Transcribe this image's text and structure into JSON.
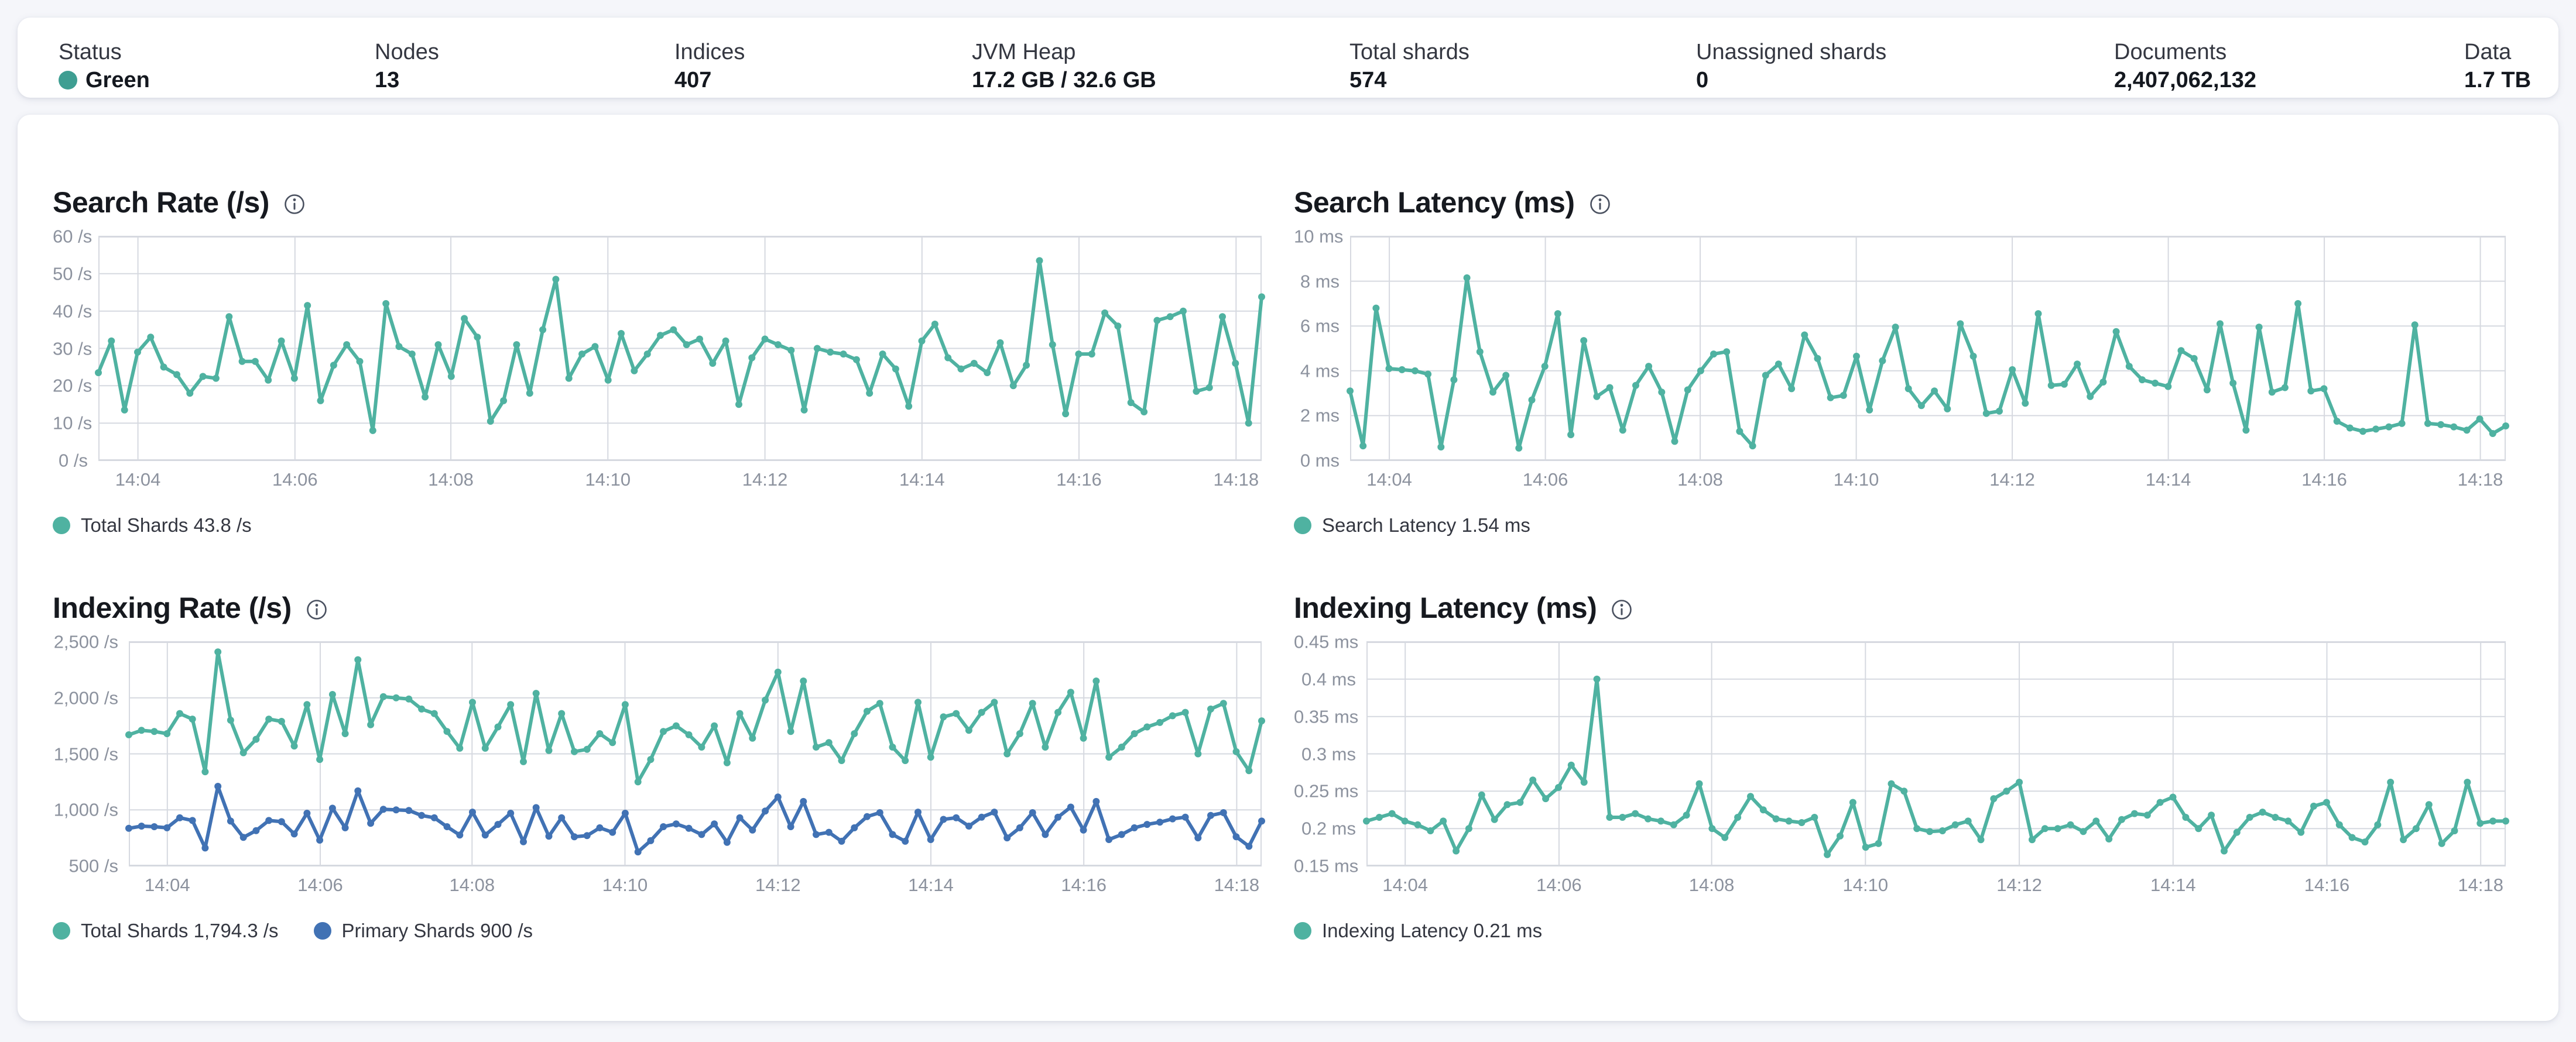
{
  "header": {
    "stats": [
      {
        "label": "Status",
        "value": "Green",
        "has_dot": true
      },
      {
        "label": "Nodes",
        "value": "13"
      },
      {
        "label": "Indices",
        "value": "407"
      },
      {
        "label": "JVM Heap",
        "value": "17.2 GB / 32.6 GB"
      },
      {
        "label": "Total shards",
        "value": "574"
      },
      {
        "label": "Unassigned shards",
        "value": "0"
      },
      {
        "label": "Documents",
        "value": "2,407,062,132"
      },
      {
        "label": "Data",
        "value": "1.7 TB"
      }
    ]
  },
  "colors": {
    "teal": "#4fb2a1",
    "blue": "#4172b4",
    "status_green": "#3e9e92",
    "grid": "#d6d9e0",
    "axis_text": "#8c929e"
  },
  "chart_data": [
    {
      "type": "line",
      "title": "Search Rate (/s)",
      "ylim": [
        0,
        60
      ],
      "xlabel": "",
      "ylabel": "",
      "grid": true,
      "legend_position": "bottom-left",
      "y_ticks": [
        {
          "v": 0,
          "label": "0 /s"
        },
        {
          "v": 10,
          "label": "10 /s"
        },
        {
          "v": 20,
          "label": "20 /s"
        },
        {
          "v": 30,
          "label": "30 /s"
        },
        {
          "v": 40,
          "label": "40 /s"
        },
        {
          "v": 50,
          "label": "50 /s"
        },
        {
          "v": 60,
          "label": "60 /s"
        }
      ],
      "x_ticks": {
        "labels": [
          "14:04",
          "14:06",
          "14:08",
          "14:10",
          "14:12",
          "14:14",
          "14:16",
          "14:18"
        ],
        "fractions": [
          0.034,
          0.169,
          0.303,
          0.438,
          0.573,
          0.708,
          0.843,
          0.978
        ]
      },
      "series": [
        {
          "name": "Total Shards",
          "color": "#4fb2a1",
          "values": [
            23.5,
            32,
            13.5,
            29,
            33,
            25,
            23,
            18,
            22.5,
            22,
            38.5,
            26.5,
            26.5,
            21.5,
            32,
            22,
            41.5,
            16,
            25.5,
            31,
            26.5,
            8,
            42,
            30.5,
            28.5,
            17,
            31,
            22.5,
            38,
            33,
            10.5,
            16,
            31,
            18,
            35,
            48.5,
            22,
            28.5,
            30.5,
            21.5,
            34,
            24,
            28.5,
            33.5,
            35,
            31,
            32.5,
            26,
            32,
            15,
            27.5,
            32.5,
            31,
            29.5,
            13.5,
            30,
            29,
            28.5,
            27,
            18,
            28.5,
            24.5,
            14.5,
            32,
            36.5,
            27.5,
            24.5,
            26,
            23.5,
            31.5,
            20,
            25.5,
            53.5,
            31,
            12.5,
            28.5,
            28.5,
            39.5,
            36,
            15.5,
            13,
            37.5,
            38.5,
            40,
            18.5,
            19.5,
            38.5,
            26,
            10,
            43.8
          ]
        }
      ],
      "legend": [
        {
          "label": "Total Shards 43.8 /s",
          "color": "#4fb2a1"
        }
      ]
    },
    {
      "type": "line",
      "title": "Search Latency (ms)",
      "ylim": [
        0,
        10
      ],
      "xlabel": "",
      "ylabel": "",
      "grid": true,
      "legend_position": "bottom-left",
      "y_ticks": [
        {
          "v": 0,
          "label": "0 ms"
        },
        {
          "v": 2,
          "label": "2 ms"
        },
        {
          "v": 4,
          "label": "4 ms"
        },
        {
          "v": 6,
          "label": "6 ms"
        },
        {
          "v": 8,
          "label": "8 ms"
        },
        {
          "v": 10,
          "label": "10 ms"
        }
      ],
      "x_ticks": {
        "labels": [
          "14:04",
          "14:06",
          "14:08",
          "14:10",
          "14:12",
          "14:14",
          "14:16",
          "14:18"
        ],
        "fractions": [
          0.034,
          0.169,
          0.303,
          0.438,
          0.573,
          0.708,
          0.843,
          0.978
        ]
      },
      "series": [
        {
          "name": "Search Latency",
          "color": "#4fb2a1",
          "values": [
            3.1,
            0.65,
            6.8,
            4.1,
            4.05,
            4.0,
            3.85,
            0.6,
            3.6,
            8.15,
            4.85,
            3.05,
            3.8,
            0.55,
            2.7,
            4.2,
            6.55,
            1.15,
            5.35,
            2.85,
            3.25,
            1.35,
            3.35,
            4.2,
            3.05,
            0.85,
            3.15,
            4.0,
            4.75,
            4.85,
            1.3,
            0.65,
            3.8,
            4.3,
            3.2,
            5.6,
            4.55,
            2.8,
            2.9,
            4.65,
            2.25,
            4.45,
            5.95,
            3.2,
            2.45,
            3.1,
            2.3,
            6.1,
            4.65,
            2.1,
            2.2,
            4.05,
            2.55,
            6.55,
            3.35,
            3.4,
            4.3,
            2.85,
            3.5,
            5.75,
            4.2,
            3.6,
            3.45,
            3.3,
            4.9,
            4.55,
            3.15,
            6.1,
            3.45,
            1.35,
            5.95,
            3.05,
            3.25,
            7.0,
            3.1,
            3.2,
            1.75,
            1.45,
            1.3,
            1.4,
            1.5,
            1.65,
            6.05,
            1.65,
            1.6,
            1.5,
            1.35,
            1.85,
            1.2,
            1.54
          ]
        }
      ],
      "legend": [
        {
          "label": "Search Latency 1.54 ms",
          "color": "#4fb2a1"
        }
      ]
    },
    {
      "type": "line",
      "title": "Indexing Rate (/s)",
      "ylim": [
        500,
        2500
      ],
      "xlabel": "",
      "ylabel": "",
      "grid": true,
      "legend_position": "bottom-left",
      "y_ticks": [
        {
          "v": 500,
          "label": "500 /s"
        },
        {
          "v": 1000,
          "label": "1,000 /s"
        },
        {
          "v": 1500,
          "label": "1,500 /s"
        },
        {
          "v": 2000,
          "label": "2,000 /s"
        },
        {
          "v": 2500,
          "label": "2,500 /s"
        }
      ],
      "x_ticks": {
        "labels": [
          "14:04",
          "14:06",
          "14:08",
          "14:10",
          "14:12",
          "14:14",
          "14:16",
          "14:18"
        ],
        "fractions": [
          0.034,
          0.169,
          0.303,
          0.438,
          0.573,
          0.708,
          0.843,
          0.978
        ]
      },
      "series": [
        {
          "name": "Total Shards",
          "color": "#4fb2a1",
          "values": [
            1670,
            1710,
            1700,
            1680,
            1860,
            1810,
            1340,
            2410,
            1800,
            1510,
            1630,
            1810,
            1790,
            1570,
            1940,
            1450,
            2030,
            1680,
            2340,
            1760,
            2010,
            2000,
            1990,
            1900,
            1860,
            1700,
            1550,
            1960,
            1550,
            1740,
            1940,
            1430,
            2040,
            1530,
            1860,
            1520,
            1540,
            1680,
            1600,
            1940,
            1250,
            1450,
            1700,
            1750,
            1670,
            1560,
            1750,
            1420,
            1860,
            1640,
            1980,
            2230,
            1700,
            2150,
            1560,
            1600,
            1440,
            1680,
            1880,
            1950,
            1560,
            1440,
            1960,
            1470,
            1830,
            1860,
            1710,
            1870,
            1960,
            1500,
            1680,
            1950,
            1560,
            1870,
            2050,
            1640,
            2150,
            1470,
            1560,
            1680,
            1740,
            1780,
            1840,
            1870,
            1500,
            1900,
            1950,
            1520,
            1350,
            1794.3
          ]
        },
        {
          "name": "Primary Shards",
          "color": "#4172b4",
          "values": [
            835,
            855,
            850,
            840,
            930,
            905,
            660,
            1210,
            900,
            755,
            815,
            905,
            895,
            785,
            970,
            730,
            1015,
            840,
            1170,
            880,
            1005,
            1000,
            995,
            950,
            930,
            850,
            775,
            980,
            775,
            870,
            970,
            715,
            1020,
            765,
            930,
            760,
            770,
            840,
            800,
            970,
            625,
            725,
            850,
            875,
            835,
            780,
            875,
            710,
            930,
            820,
            990,
            1115,
            850,
            1075,
            780,
            800,
            720,
            840,
            940,
            975,
            780,
            720,
            980,
            735,
            915,
            930,
            855,
            935,
            980,
            750,
            840,
            975,
            780,
            935,
            1025,
            820,
            1075,
            735,
            780,
            840,
            870,
            890,
            920,
            935,
            750,
            950,
            975,
            760,
            675,
            900
          ]
        }
      ],
      "legend": [
        {
          "label": "Total Shards 1,794.3 /s",
          "color": "#4fb2a1"
        },
        {
          "label": "Primary Shards 900 /s",
          "color": "#4172b4"
        }
      ]
    },
    {
      "type": "line",
      "title": "Indexing Latency (ms)",
      "ylim": [
        0.15,
        0.45
      ],
      "xlabel": "",
      "ylabel": "",
      "grid": true,
      "legend_position": "bottom-left",
      "y_ticks": [
        {
          "v": 0.15,
          "label": "0.15 ms"
        },
        {
          "v": 0.2,
          "label": "0.2 ms"
        },
        {
          "v": 0.25,
          "label": "0.25 ms"
        },
        {
          "v": 0.3,
          "label": "0.3 ms"
        },
        {
          "v": 0.35,
          "label": "0.35 ms"
        },
        {
          "v": 0.4,
          "label": "0.4 ms"
        },
        {
          "v": 0.45,
          "label": "0.45 ms"
        }
      ],
      "x_ticks": {
        "labels": [
          "14:04",
          "14:06",
          "14:08",
          "14:10",
          "14:12",
          "14:14",
          "14:16",
          "14:18"
        ],
        "fractions": [
          0.034,
          0.169,
          0.303,
          0.438,
          0.573,
          0.708,
          0.843,
          0.978
        ]
      },
      "series": [
        {
          "name": "Indexing Latency",
          "color": "#4fb2a1",
          "values": [
            0.21,
            0.215,
            0.22,
            0.21,
            0.205,
            0.197,
            0.21,
            0.17,
            0.2,
            0.245,
            0.212,
            0.232,
            0.235,
            0.265,
            0.24,
            0.255,
            0.285,
            0.262,
            0.4,
            0.215,
            0.215,
            0.22,
            0.213,
            0.21,
            0.205,
            0.218,
            0.26,
            0.2,
            0.188,
            0.215,
            0.243,
            0.225,
            0.213,
            0.21,
            0.208,
            0.215,
            0.165,
            0.19,
            0.235,
            0.175,
            0.18,
            0.26,
            0.25,
            0.2,
            0.196,
            0.197,
            0.205,
            0.21,
            0.185,
            0.24,
            0.25,
            0.262,
            0.185,
            0.2,
            0.2,
            0.205,
            0.196,
            0.21,
            0.186,
            0.212,
            0.22,
            0.218,
            0.235,
            0.242,
            0.215,
            0.2,
            0.218,
            0.17,
            0.195,
            0.215,
            0.222,
            0.215,
            0.21,
            0.195,
            0.23,
            0.235,
            0.205,
            0.188,
            0.182,
            0.205,
            0.262,
            0.185,
            0.2,
            0.232,
            0.18,
            0.197,
            0.262,
            0.207,
            0.21,
            0.21
          ]
        }
      ],
      "legend": [
        {
          "label": "Indexing Latency 0.21 ms",
          "color": "#4fb2a1"
        }
      ]
    }
  ]
}
